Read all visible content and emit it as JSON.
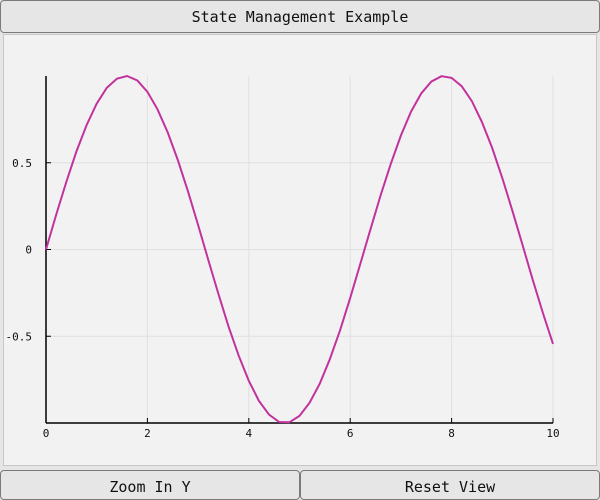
{
  "window": {
    "title": "State Management Example"
  },
  "buttons": {
    "zoom_in_y": "Zoom In Y",
    "reset_view": "Reset View"
  },
  "colors": {
    "line": "#c2329e",
    "axis": "#000000",
    "grid": "#e0e0e0"
  },
  "chart_data": {
    "type": "line",
    "title": "",
    "xlabel": "",
    "ylabel": "",
    "function": "sin(x)",
    "x_range": [
      0,
      10
    ],
    "y_range": [
      -1,
      1
    ],
    "x_ticks": [
      0,
      2,
      4,
      6,
      8,
      10
    ],
    "x_tick_labels": [
      "0",
      "2",
      "4",
      "6",
      "8",
      "10"
    ],
    "y_ticks": [
      0.5,
      0,
      -0.5
    ],
    "y_tick_labels": [
      "0.5",
      "0",
      "-0.5"
    ],
    "grid": true,
    "series": [
      {
        "x": [
          0,
          0.2,
          0.4,
          0.6,
          0.8,
          1,
          1.2,
          1.4,
          1.6,
          1.8,
          2,
          2.2,
          2.4,
          2.6,
          2.8,
          3,
          3.2,
          3.4,
          3.6,
          3.8,
          4,
          4.2,
          4.4,
          4.6,
          4.8,
          5,
          5.2,
          5.4,
          5.6,
          5.8,
          6,
          6.2,
          6.4,
          6.6,
          6.8,
          7,
          7.2,
          7.4,
          7.6,
          7.8,
          8,
          8.2,
          8.4,
          8.6,
          8.8,
          9,
          9.2,
          9.4,
          9.6,
          9.8,
          10
        ],
        "y": [
          0,
          0.199,
          0.389,
          0.565,
          0.717,
          0.841,
          0.932,
          0.985,
          1.0,
          0.974,
          0.909,
          0.808,
          0.675,
          0.516,
          0.335,
          0.141,
          -0.058,
          -0.256,
          -0.443,
          -0.612,
          -0.757,
          -0.872,
          -0.952,
          -0.994,
          -0.996,
          -0.959,
          -0.883,
          -0.773,
          -0.631,
          -0.465,
          -0.279,
          -0.083,
          0.117,
          0.312,
          0.494,
          0.657,
          0.794,
          0.899,
          0.968,
          0.999,
          0.989,
          0.941,
          0.855,
          0.734,
          0.585,
          0.412,
          0.223,
          0.025,
          -0.174,
          -0.366,
          -0.544
        ]
      }
    ]
  }
}
